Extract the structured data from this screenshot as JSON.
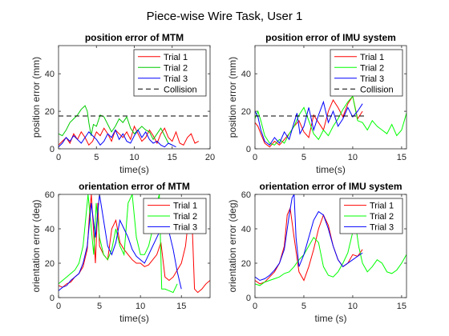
{
  "figure_title": "Piece-wise Wire Task, User 1",
  "chart_data": [
    {
      "type": "line",
      "title": "position error of MTM",
      "xlabel": "time(s)",
      "ylabel": "position error (mm)",
      "xlim": [
        0,
        20
      ],
      "ylim": [
        0,
        55
      ],
      "xticks": [
        0,
        5,
        10,
        15,
        20
      ],
      "yticks": [
        0,
        20,
        40
      ],
      "legend_position": "top-right",
      "series": [
        {
          "name": "Trial 1",
          "color": "#ff0000",
          "dash": false,
          "x": [
            0,
            0.5,
            1,
            1.5,
            2,
            2.5,
            3,
            3.5,
            4,
            4.5,
            5,
            5.5,
            6,
            6.5,
            7,
            7.5,
            8,
            8.5,
            9,
            9.5,
            10,
            10.5,
            11,
            11.5,
            12,
            12.5,
            13,
            13.5,
            14,
            14.5,
            15,
            15.5,
            16,
            16.5,
            17,
            17.5,
            18,
            18.5
          ],
          "y": [
            2,
            4,
            6,
            3,
            8,
            5,
            9,
            6,
            2,
            4,
            9,
            7,
            11,
            8,
            4,
            10,
            8,
            6,
            9,
            5,
            12,
            8,
            4,
            6,
            10,
            7,
            3,
            8,
            11,
            6,
            4,
            9,
            3,
            2,
            6,
            8,
            3,
            4
          ]
        },
        {
          "name": "Trial 2",
          "color": "#00cc00",
          "dash": false,
          "x": [
            0,
            0.5,
            1,
            1.5,
            2,
            2.5,
            3,
            3.5,
            3.8,
            4,
            4.3,
            4.6,
            5,
            5.5,
            6,
            6.5,
            7,
            7.5,
            8,
            8.5,
            9,
            9.5,
            10,
            10.5,
            11,
            11.5,
            12,
            12.5,
            13,
            13.5,
            14,
            14.5,
            15
          ],
          "y": [
            8,
            7,
            10,
            14,
            16,
            18,
            21,
            23,
            20,
            14,
            7,
            13,
            12,
            18,
            17,
            13,
            9,
            12,
            16,
            14,
            17,
            11,
            8,
            10,
            12,
            10,
            9,
            5,
            8,
            11,
            7,
            3,
            2
          ]
        },
        {
          "name": "Trial 3",
          "color": "#0000ff",
          "dash": false,
          "x": [
            0,
            0.5,
            1,
            1.5,
            2,
            2.5,
            3,
            3.5,
            4,
            4.5,
            5,
            5.5,
            6,
            6.5,
            7,
            7.5,
            8,
            8.5,
            9,
            9.5,
            10,
            10.5,
            11,
            11.5,
            12,
            12.5,
            13,
            13.5,
            14,
            14.5,
            15,
            15.5
          ],
          "y": [
            1,
            3,
            6,
            4,
            7,
            5,
            3,
            6,
            9,
            7,
            5,
            2,
            4,
            8,
            6,
            10,
            5,
            8,
            4,
            3,
            7,
            10,
            6,
            9,
            5,
            3,
            4,
            2,
            1,
            3,
            2,
            1
          ]
        },
        {
          "name": "Collision",
          "color": "#000000",
          "dash": true,
          "x": [
            0,
            20
          ],
          "y": [
            17.5,
            17.5
          ]
        }
      ]
    },
    {
      "type": "line",
      "title": "position error of IMU system",
      "xlabel": "time(s)",
      "ylabel": "position error (mm)",
      "xlim": [
        0,
        15.5
      ],
      "ylim": [
        0,
        55
      ],
      "xticks": [
        0,
        5,
        10,
        15
      ],
      "yticks": [
        0,
        20,
        40
      ],
      "legend_position": "top-right",
      "series": [
        {
          "name": "Trial 1",
          "color": "#ff0000",
          "dash": false,
          "x": [
            0,
            0.3,
            0.6,
            1,
            1.5,
            2,
            2.5,
            3,
            3.5,
            4,
            4.5,
            5,
            5.5,
            6,
            6.5,
            7,
            7.5,
            8,
            8.5,
            9,
            9.5,
            10,
            10.5,
            11
          ],
          "y": [
            14,
            12,
            8,
            3,
            1,
            4,
            2,
            5,
            8,
            12,
            15,
            9,
            6,
            18,
            14,
            10,
            20,
            26,
            22,
            17,
            24,
            28,
            16,
            20
          ]
        },
        {
          "name": "Trial 2",
          "color": "#00ff00",
          "dash": false,
          "x": [
            0,
            0.3,
            0.6,
            1,
            1.5,
            2,
            2.5,
            3,
            3.5,
            4,
            4.5,
            5,
            5.5,
            6,
            6.5,
            7,
            7.5,
            8,
            8.5,
            9,
            9.5,
            10,
            10.5,
            11,
            11.5,
            12,
            12.5,
            13,
            13.5,
            14,
            14.5,
            15,
            15.5
          ],
          "y": [
            16,
            20,
            15,
            7,
            3,
            2,
            5,
            3,
            8,
            12,
            18,
            22,
            15,
            8,
            5,
            10,
            7,
            12,
            16,
            21,
            25,
            28,
            15,
            14,
            10,
            15,
            12,
            10,
            8,
            13,
            7,
            10,
            19
          ]
        },
        {
          "name": "Trial 3",
          "color": "#0000ff",
          "dash": false,
          "x": [
            0,
            0.3,
            0.6,
            1,
            1.5,
            2,
            2.5,
            3,
            3.5,
            4,
            4.3,
            4.6,
            5,
            5.5,
            6,
            6.5,
            7,
            7.5,
            8,
            8.5,
            9,
            9.5,
            10,
            10.5,
            11
          ],
          "y": [
            20,
            17,
            10,
            4,
            2,
            6,
            3,
            9,
            5,
            14,
            19,
            8,
            12,
            22,
            10,
            18,
            25,
            14,
            20,
            12,
            16,
            22,
            17,
            20,
            24
          ]
        },
        {
          "name": "Collision",
          "color": "#000000",
          "dash": true,
          "x": [
            0,
            11.2
          ],
          "y": [
            17.5,
            17.5
          ]
        }
      ]
    },
    {
      "type": "line",
      "title": "orientation error of MTM",
      "xlabel": "time(s)",
      "ylabel": "orientation error (deg)",
      "xlim": [
        0,
        18.5
      ],
      "ylim": [
        0,
        60
      ],
      "xticks": [
        0,
        5,
        10,
        15
      ],
      "yticks": [
        0,
        20,
        40,
        60
      ],
      "legend_position": "top-right",
      "series": [
        {
          "name": "Trial 1",
          "color": "#ff0000",
          "dash": false,
          "x": [
            0,
            0.5,
            1,
            1.5,
            2,
            2.5,
            3,
            3.5,
            3.8,
            4,
            4.2,
            4.5,
            4.8,
            5,
            5.5,
            6,
            6.5,
            7,
            7.5,
            8,
            8.5,
            9,
            9.5,
            10,
            10.5,
            11,
            11.5,
            12,
            12.5,
            13,
            13.5,
            14,
            14.5,
            15,
            15.5,
            16,
            16.3,
            16.6,
            17,
            17.5,
            18,
            18.5
          ],
          "y": [
            7,
            6,
            8,
            9,
            12,
            14,
            18,
            28,
            50,
            60,
            45,
            20,
            55,
            30,
            25,
            22,
            40,
            45,
            32,
            28,
            25,
            22,
            20,
            20,
            18,
            19,
            22,
            25,
            32,
            12,
            10,
            12,
            16,
            20,
            30,
            52,
            45,
            5,
            3,
            5,
            8,
            10
          ]
        },
        {
          "name": "Trial 2",
          "color": "#00ff00",
          "dash": false,
          "x": [
            0,
            0.5,
            1,
            1.5,
            2,
            2.5,
            3,
            3.3,
            3.6,
            4,
            4.3,
            4.6,
            5,
            5.5,
            6,
            6.5,
            7,
            7.5,
            8,
            8.5,
            9,
            9.5,
            10,
            10.5,
            11,
            11.5,
            12,
            12.3,
            12.6,
            13,
            13.5,
            14,
            14.5
          ],
          "y": [
            8,
            10,
            12,
            14,
            16,
            20,
            30,
            45,
            60,
            40,
            25,
            55,
            35,
            25,
            22,
            28,
            40,
            30,
            25,
            55,
            60,
            35,
            25,
            25,
            30,
            40,
            55,
            60,
            5,
            5,
            4,
            3,
            8
          ]
        },
        {
          "name": "Trial 3",
          "color": "#0000ff",
          "dash": false,
          "x": [
            0,
            0.5,
            1,
            1.5,
            2,
            2.5,
            3,
            3.5,
            4,
            4.5,
            5,
            5.5,
            6,
            6.5,
            7,
            7.5,
            8,
            8.5,
            9,
            9.5,
            10,
            10.5,
            11,
            11.5,
            12,
            12.5,
            13,
            13.5,
            14,
            14.5,
            15
          ],
          "y": [
            4,
            6,
            7,
            10,
            12,
            14,
            20,
            30,
            55,
            35,
            60,
            45,
            30,
            25,
            32,
            45,
            40,
            35,
            28,
            24,
            22,
            20,
            25,
            30,
            35,
            40,
            42,
            38,
            28,
            15,
            5
          ]
        }
      ]
    },
    {
      "type": "line",
      "title": "orientation error of IMU system",
      "xlabel": "time (s)",
      "ylabel": "orientation error (deg)",
      "xlim": [
        0,
        15.5
      ],
      "ylim": [
        0,
        60
      ],
      "xticks": [
        0,
        5,
        10,
        15
      ],
      "yticks": [
        0,
        20,
        40,
        60
      ],
      "legend_position": "top-right",
      "series": [
        {
          "name": "Trial 1",
          "color": "#ff0000",
          "dash": false,
          "x": [
            0,
            0.5,
            1,
            1.5,
            2,
            2.5,
            3,
            3.3,
            3.6,
            4,
            4.5,
            5,
            5.5,
            6,
            6.5,
            7,
            7.5,
            8,
            8.5,
            9,
            9.5,
            10,
            10.5,
            11
          ],
          "y": [
            10,
            8,
            9,
            12,
            15,
            20,
            30,
            48,
            52,
            35,
            15,
            10,
            18,
            28,
            40,
            48,
            42,
            30,
            22,
            18,
            20,
            25,
            24,
            28
          ]
        },
        {
          "name": "Trial 2",
          "color": "#00ff00",
          "dash": false,
          "x": [
            0,
            0.5,
            1,
            1.5,
            2,
            2.5,
            3,
            3.5,
            4,
            4.5,
            5,
            5.5,
            6,
            6.5,
            7,
            7.5,
            8,
            8.5,
            9,
            9.5,
            10,
            10.3,
            10.6,
            11,
            11.5,
            12,
            12.5,
            13,
            13.5,
            14,
            14.5,
            15,
            15.5
          ],
          "y": [
            8,
            7,
            9,
            10,
            11,
            12,
            14,
            15,
            18,
            22,
            25,
            30,
            35,
            32,
            18,
            13,
            12,
            15,
            20,
            26,
            38,
            42,
            30,
            20,
            15,
            18,
            22,
            20,
            15,
            14,
            16,
            20,
            25
          ]
        },
        {
          "name": "Trial 3",
          "color": "#0000ff",
          "dash": false,
          "x": [
            0,
            0.5,
            1,
            1.5,
            2,
            2.5,
            3,
            3.5,
            3.8,
            4,
            4.2,
            4.5,
            5,
            5.5,
            6,
            6.5,
            7,
            7.5,
            8,
            8.5,
            9,
            9.5,
            10,
            10.5,
            11
          ],
          "y": [
            12,
            10,
            11,
            13,
            16,
            20,
            28,
            48,
            58,
            60,
            35,
            18,
            25,
            35,
            45,
            50,
            48,
            40,
            30,
            22,
            18,
            20,
            22,
            24,
            26
          ]
        }
      ]
    }
  ]
}
